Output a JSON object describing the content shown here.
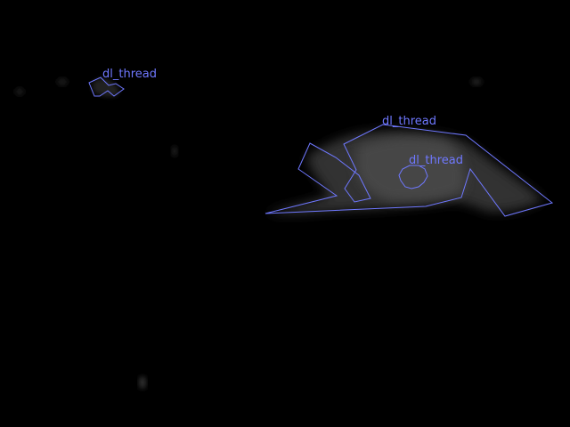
{
  "image": {
    "background_color": "#000000",
    "annotation_color": "#6f78ff",
    "annotations": [
      {
        "label": "dl_thread"
      },
      {
        "label": "dl_thread"
      },
      {
        "label": "dl_thread"
      }
    ]
  }
}
